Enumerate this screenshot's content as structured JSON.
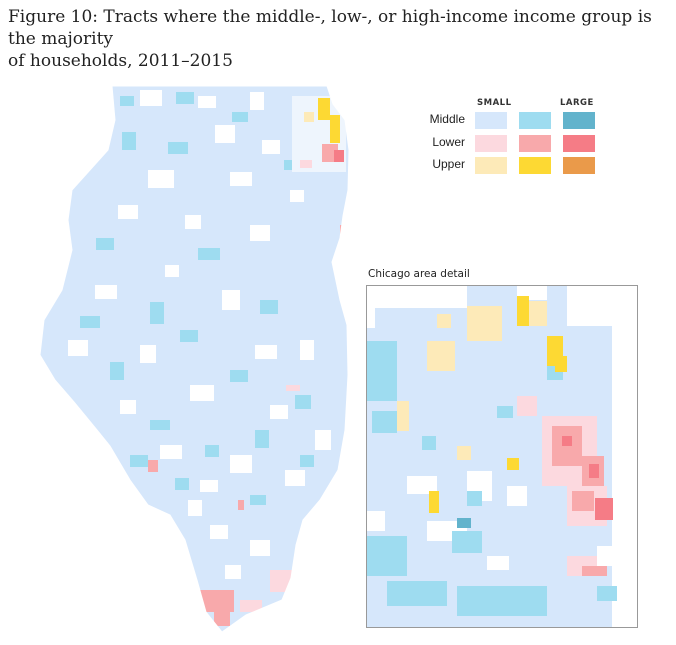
{
  "figure": {
    "title_line1": "Figure 10: Tracts where the middle-, low-, or high-income income group is the majority",
    "title_line2": "of households, 2011–2015"
  },
  "legend": {
    "small_label": "SMALL",
    "large_label": "LARGE",
    "rows": [
      {
        "label": "Middle",
        "colors": [
          "#d6e7fb",
          "#9edcf0",
          "#62b3cc"
        ]
      },
      {
        "label": "Lower",
        "colors": [
          "#fcd9df",
          "#f8a9ab",
          "#f57c86"
        ]
      },
      {
        "label": "Upper",
        "colors": [
          "#fdeab8",
          "#fdd933",
          "#ea9a4a"
        ]
      }
    ]
  },
  "inset": {
    "title": "Chicago area detail"
  }
}
